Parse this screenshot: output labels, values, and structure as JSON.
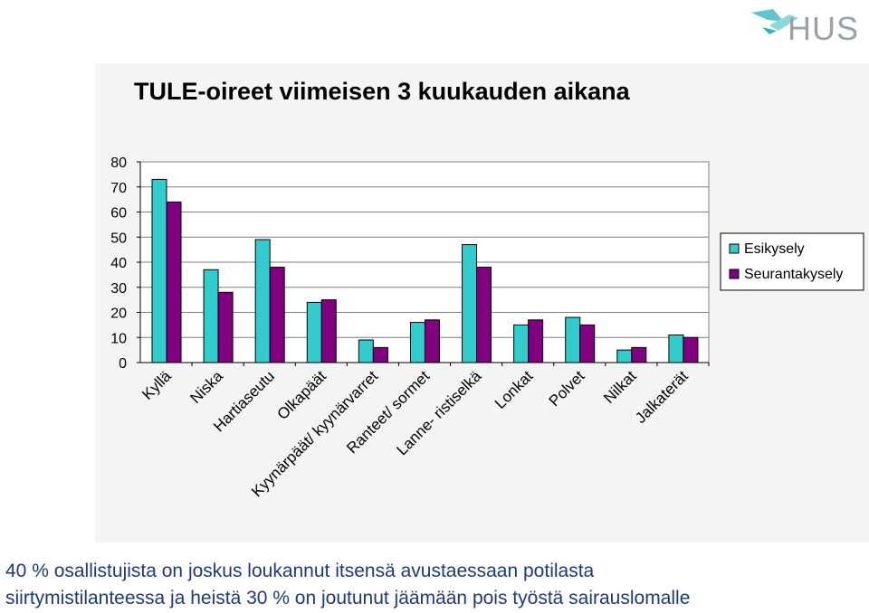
{
  "logo": {
    "text": "HUS",
    "icon": "hus-bird-logo"
  },
  "chart_data": {
    "type": "bar",
    "title": "TULE-oireet viimeisen 3 kuukauden aikana",
    "xlabel": "",
    "ylabel": "",
    "ylim": [
      0,
      80
    ],
    "yticks": [
      0,
      10,
      20,
      30,
      40,
      50,
      60,
      70,
      80
    ],
    "grid": true,
    "legend": "right",
    "categories": [
      "Kyllä",
      "Niska",
      "Hartiaseutu",
      "Olkapäät",
      "Kyynärpäät/ kyynärvarret",
      "Ranteet/ sormet",
      "Lanne- ristiselkä",
      "Lonkat",
      "Polvet",
      "Nilkat",
      "Jalkaterät"
    ],
    "series": [
      {
        "name": "Esikysely",
        "color": "#33cccc",
        "values": [
          73,
          37,
          49,
          24,
          9,
          16,
          47,
          15,
          18,
          5,
          11
        ]
      },
      {
        "name": "Seurantakysely",
        "color": "#800080",
        "values": [
          64,
          28,
          38,
          25,
          6,
          17,
          38,
          17,
          15,
          6,
          10
        ]
      }
    ]
  },
  "caption": {
    "line1": "40 % osallistujista on joskus loukannut itsensä avustaessaan potilasta",
    "line2": "siirtymistilanteessa ja heistä 30 % on joutunut jäämään pois työstä sairauslomalle"
  }
}
